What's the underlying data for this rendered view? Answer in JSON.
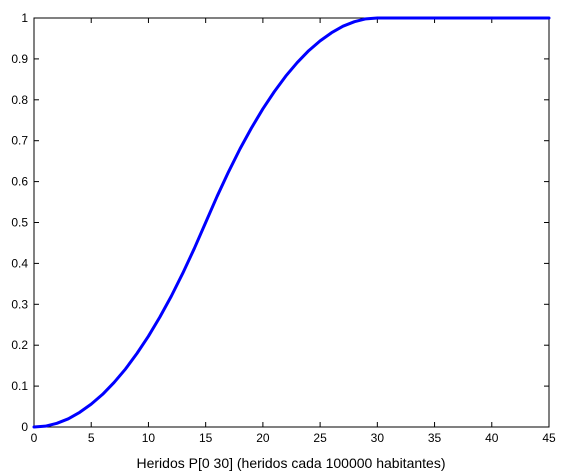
{
  "chart_data": {
    "type": "line",
    "title": "",
    "xlabel": "Heridos  P[0 30] (heridos cada 100000 habitantes)",
    "ylabel": "",
    "xlim": [
      0,
      45
    ],
    "ylim": [
      0,
      1
    ],
    "x_ticks": [
      0,
      5,
      10,
      15,
      20,
      25,
      30,
      35,
      40,
      45
    ],
    "y_ticks": [
      0,
      0.1,
      0.2,
      0.3,
      0.4,
      0.5,
      0.6,
      0.7,
      0.8,
      0.9,
      1
    ],
    "x_tick_labels": [
      "0",
      "5",
      "10",
      "15",
      "20",
      "25",
      "30",
      "35",
      "40",
      "45"
    ],
    "y_tick_labels": [
      "0",
      "0.1",
      "0.2",
      "0.3",
      "0.4",
      "0.5",
      "0.6",
      "0.7",
      "0.8",
      "0.9",
      "1"
    ],
    "grid": false,
    "legend": "none",
    "series": [
      {
        "color": "#0000ff",
        "x": [
          0,
          1,
          2,
          3,
          4,
          5,
          6,
          7,
          8,
          9,
          10,
          11,
          12,
          13,
          14,
          15,
          16,
          17,
          18,
          19,
          20,
          21,
          22,
          23,
          24,
          25,
          26,
          27,
          28,
          29,
          30,
          35,
          40,
          45
        ],
        "y": [
          0,
          0.002,
          0.009,
          0.02,
          0.036,
          0.056,
          0.08,
          0.109,
          0.142,
          0.18,
          0.222,
          0.269,
          0.32,
          0.376,
          0.436,
          0.5,
          0.564,
          0.624,
          0.68,
          0.731,
          0.778,
          0.82,
          0.858,
          0.891,
          0.92,
          0.944,
          0.964,
          0.98,
          0.991,
          0.998,
          1,
          1,
          1,
          1
        ]
      }
    ]
  }
}
